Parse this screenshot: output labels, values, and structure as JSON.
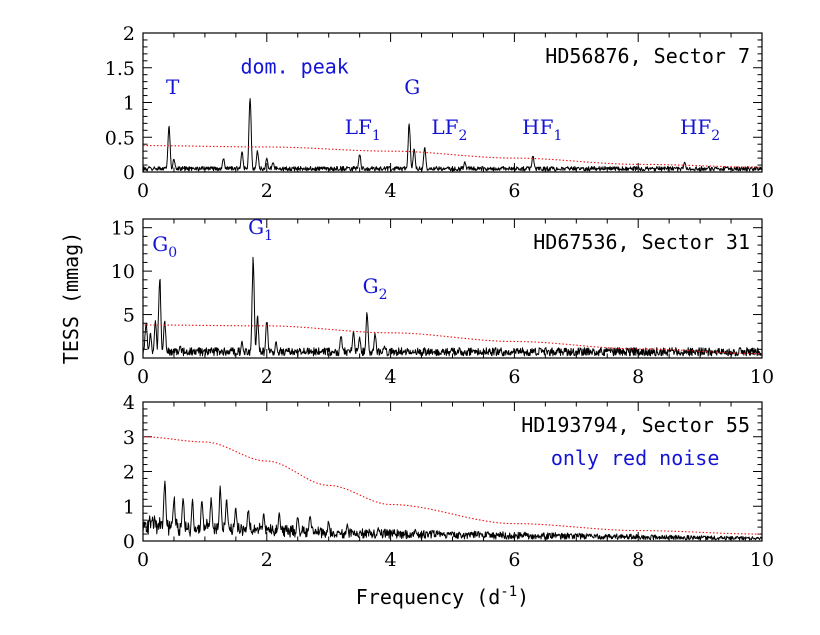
{
  "chart_data": [
    {
      "type": "line",
      "title": "HD56876, Sector 7",
      "xlim": [
        0,
        10
      ],
      "ylim": [
        0,
        2
      ],
      "yticks": [
        0,
        0.5,
        1,
        1.5,
        2
      ],
      "ytick_labels": [
        "0",
        "0.5",
        "1",
        "1.5",
        "2"
      ],
      "xticks": [
        0,
        2,
        4,
        6,
        8,
        10
      ],
      "xtick_labels": [
        "0",
        "2",
        "4",
        "6",
        "8",
        "10"
      ],
      "series": [
        {
          "style": "solid-black",
          "baseline": 0.04,
          "peaks": [
            {
              "x": 0.42,
              "y": 0.72
            },
            {
              "x": 0.5,
              "y": 0.2
            },
            {
              "x": 1.3,
              "y": 0.22
            },
            {
              "x": 1.6,
              "y": 0.3
            },
            {
              "x": 1.73,
              "y": 1.13
            },
            {
              "x": 1.85,
              "y": 0.32
            },
            {
              "x": 2.0,
              "y": 0.22
            },
            {
              "x": 2.1,
              "y": 0.15
            },
            {
              "x": 3.5,
              "y": 0.28
            },
            {
              "x": 4.3,
              "y": 0.72
            },
            {
              "x": 4.38,
              "y": 0.35
            },
            {
              "x": 4.55,
              "y": 0.38
            },
            {
              "x": 5.2,
              "y": 0.15
            },
            {
              "x": 6.3,
              "y": 0.25
            },
            {
              "x": 8.0,
              "y": 0.08
            },
            {
              "x": 8.75,
              "y": 0.15
            }
          ]
        },
        {
          "style": "dotted-red",
          "x": [
            0,
            2,
            4,
            6,
            8,
            10
          ],
          "y": [
            0.38,
            0.36,
            0.3,
            0.2,
            0.11,
            0.07
          ]
        }
      ],
      "annotations": [
        {
          "text": "T",
          "sub": "",
          "x": 0.48,
          "y": 1.12
        },
        {
          "text": "dom. peak",
          "sub": "",
          "x": 2.45,
          "y": 1.42
        },
        {
          "text": "G",
          "sub": "",
          "x": 4.35,
          "y": 1.12
        },
        {
          "text": "LF",
          "sub": "1",
          "x": 3.55,
          "y": 0.55
        },
        {
          "text": "LF",
          "sub": "2",
          "x": 4.95,
          "y": 0.55
        },
        {
          "text": "HF",
          "sub": "1",
          "x": 6.45,
          "y": 0.55
        },
        {
          "text": "HF",
          "sub": "2",
          "x": 9.0,
          "y": 0.55
        }
      ],
      "label": "HD56876, Sector 7"
    },
    {
      "type": "line",
      "title": "HD67536, Sector 31",
      "xlim": [
        0,
        10
      ],
      "ylim": [
        0,
        16
      ],
      "yticks": [
        0,
        5,
        10,
        15
      ],
      "ytick_labels": [
        "0",
        "5",
        "10",
        "15"
      ],
      "xticks": [
        0,
        2,
        4,
        6,
        8,
        10
      ],
      "xtick_labels": [
        "0",
        "2",
        "4",
        "6",
        "8",
        "10"
      ],
      "series": [
        {
          "style": "solid-black",
          "baseline": 0.6,
          "peaks": [
            {
              "x": 0.05,
              "y": 4.5
            },
            {
              "x": 0.12,
              "y": 3.0
            },
            {
              "x": 0.2,
              "y": 4.5
            },
            {
              "x": 0.27,
              "y": 10.3
            },
            {
              "x": 0.35,
              "y": 4.5
            },
            {
              "x": 0.6,
              "y": 1.5
            },
            {
              "x": 1.6,
              "y": 2.0
            },
            {
              "x": 1.78,
              "y": 12.0
            },
            {
              "x": 1.85,
              "y": 5.0
            },
            {
              "x": 2.0,
              "y": 4.5
            },
            {
              "x": 2.15,
              "y": 2.0
            },
            {
              "x": 3.2,
              "y": 2.8
            },
            {
              "x": 3.4,
              "y": 3.2
            },
            {
              "x": 3.5,
              "y": 2.5
            },
            {
              "x": 3.62,
              "y": 5.5
            },
            {
              "x": 3.75,
              "y": 3.0
            },
            {
              "x": 3.9,
              "y": 1.5
            },
            {
              "x": 6.0,
              "y": 1.0
            },
            {
              "x": 7.4,
              "y": 0.9
            },
            {
              "x": 8.6,
              "y": 0.8
            }
          ]
        },
        {
          "style": "dotted-red",
          "x": [
            0,
            2,
            4,
            6,
            8,
            10
          ],
          "y": [
            3.8,
            3.7,
            2.9,
            1.9,
            1.05,
            0.5
          ]
        }
      ],
      "annotations": [
        {
          "text": "G",
          "sub": "0",
          "x": 0.35,
          "y": 12.3
        },
        {
          "text": "G",
          "sub": "1",
          "x": 1.9,
          "y": 14.3
        },
        {
          "text": "G",
          "sub": "2",
          "x": 3.75,
          "y": 7.5
        }
      ],
      "label": "HD67536, Sector 31"
    },
    {
      "type": "line",
      "title": "HD193794, Sector 55",
      "xlim": [
        0,
        10
      ],
      "ylim": [
        0,
        4
      ],
      "yticks": [
        0,
        1,
        2,
        3,
        4
      ],
      "ytick_labels": [
        "0",
        "1",
        "2",
        "3",
        "4"
      ],
      "xticks": [
        0,
        2,
        4,
        6,
        8,
        10
      ],
      "xtick_labels": [
        "0",
        "2",
        "4",
        "6",
        "8",
        "10"
      ],
      "xlabel": "Frequency (d",
      "xlabel_sup": "-1",
      "xlabel_end": ")",
      "series": [
        {
          "style": "solid-black",
          "baseline": 0.15,
          "peaks": [
            {
              "x": 0.15,
              "y": 0.6
            },
            {
              "x": 0.35,
              "y": 1.65
            },
            {
              "x": 0.5,
              "y": 1.2
            },
            {
              "x": 0.65,
              "y": 1.2
            },
            {
              "x": 0.8,
              "y": 1.0
            },
            {
              "x": 0.95,
              "y": 1.1
            },
            {
              "x": 1.1,
              "y": 1.2
            },
            {
              "x": 1.25,
              "y": 1.5
            },
            {
              "x": 1.35,
              "y": 1.2
            },
            {
              "x": 1.5,
              "y": 0.9
            },
            {
              "x": 1.7,
              "y": 0.9
            },
            {
              "x": 1.95,
              "y": 0.8
            },
            {
              "x": 2.2,
              "y": 0.8
            },
            {
              "x": 2.5,
              "y": 0.7
            },
            {
              "x": 2.7,
              "y": 0.8
            },
            {
              "x": 3.0,
              "y": 0.6
            },
            {
              "x": 3.3,
              "y": 0.5
            },
            {
              "x": 3.8,
              "y": 0.4
            },
            {
              "x": 4.4,
              "y": 0.35
            },
            {
              "x": 5.0,
              "y": 0.3
            }
          ]
        },
        {
          "style": "dotted-red",
          "x": [
            0,
            1,
            2,
            3,
            4,
            6,
            8,
            10
          ],
          "y": [
            3.0,
            2.85,
            2.3,
            1.6,
            1.05,
            0.5,
            0.3,
            0.2
          ]
        }
      ],
      "annotations": [
        {
          "text": "only red noise",
          "sub": "",
          "x": 7.95,
          "y": 2.18
        }
      ],
      "label": "HD193794, Sector 55"
    }
  ],
  "ylabel": "TESS (mmag)",
  "colors": {
    "spectrum": "#000000",
    "rednoise": "#ee1111",
    "annotation": "#1414d4",
    "frame": "#000000"
  }
}
